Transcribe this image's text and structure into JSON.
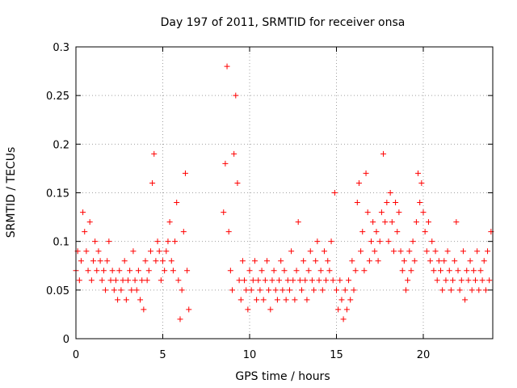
{
  "chart_data": {
    "type": "scatter",
    "title": "Day 197 of 2011, SRMTID for receiver onsa",
    "xlabel": "GPS time / hours",
    "ylabel": "SRMTID / TECUs",
    "xlim": [
      0,
      24
    ],
    "ylim": [
      0,
      0.3
    ],
    "xticks": [
      "0",
      "5",
      "10",
      "15",
      "20"
    ],
    "yticks": [
      "0",
      "0.05",
      "0.1",
      "0.15",
      "0.2",
      "0.25",
      "0.3"
    ],
    "grid": true,
    "marker": "plus",
    "color": "#ff0000",
    "series": [
      {
        "name": "onsa",
        "points": [
          [
            0.0,
            0.07
          ],
          [
            0.1,
            0.09
          ],
          [
            0.2,
            0.06
          ],
          [
            0.3,
            0.08
          ],
          [
            0.4,
            0.13
          ],
          [
            0.5,
            0.11
          ],
          [
            0.6,
            0.09
          ],
          [
            0.7,
            0.07
          ],
          [
            0.8,
            0.12
          ],
          [
            0.9,
            0.06
          ],
          [
            1.0,
            0.08
          ],
          [
            1.1,
            0.1
          ],
          [
            1.2,
            0.07
          ],
          [
            1.3,
            0.09
          ],
          [
            1.4,
            0.08
          ],
          [
            1.5,
            0.06
          ],
          [
            1.6,
            0.07
          ],
          [
            1.7,
            0.05
          ],
          [
            1.8,
            0.08
          ],
          [
            1.9,
            0.1
          ],
          [
            2.0,
            0.06
          ],
          [
            2.1,
            0.07
          ],
          [
            2.2,
            0.05
          ],
          [
            2.3,
            0.06
          ],
          [
            2.4,
            0.04
          ],
          [
            2.5,
            0.07
          ],
          [
            2.6,
            0.05
          ],
          [
            2.7,
            0.06
          ],
          [
            2.8,
            0.08
          ],
          [
            2.9,
            0.04
          ],
          [
            3.0,
            0.06
          ],
          [
            3.1,
            0.07
          ],
          [
            3.2,
            0.05
          ],
          [
            3.3,
            0.09
          ],
          [
            3.4,
            0.06
          ],
          [
            3.5,
            0.05
          ],
          [
            3.6,
            0.07
          ],
          [
            3.7,
            0.04
          ],
          [
            3.8,
            0.06
          ],
          [
            3.9,
            0.03
          ],
          [
            4.0,
            0.08
          ],
          [
            4.1,
            0.06
          ],
          [
            4.2,
            0.07
          ],
          [
            4.3,
            0.09
          ],
          [
            4.4,
            0.16
          ],
          [
            4.5,
            0.19
          ],
          [
            4.6,
            0.08
          ],
          [
            4.7,
            0.1
          ],
          [
            4.8,
            0.09
          ],
          [
            4.9,
            0.06
          ],
          [
            5.0,
            0.08
          ],
          [
            5.1,
            0.07
          ],
          [
            5.2,
            0.09
          ],
          [
            5.3,
            0.1
          ],
          [
            5.4,
            0.12
          ],
          [
            5.5,
            0.08
          ],
          [
            5.6,
            0.07
          ],
          [
            5.7,
            0.1
          ],
          [
            5.8,
            0.14
          ],
          [
            5.9,
            0.06
          ],
          [
            6.0,
            0.02
          ],
          [
            6.1,
            0.05
          ],
          [
            6.2,
            0.11
          ],
          [
            6.3,
            0.17
          ],
          [
            6.4,
            0.07
          ],
          [
            6.5,
            0.03
          ],
          [
            8.5,
            0.13
          ],
          [
            8.6,
            0.18
          ],
          [
            8.7,
            0.28
          ],
          [
            8.8,
            0.11
          ],
          [
            8.9,
            0.07
          ],
          [
            9.0,
            0.05
          ],
          [
            9.1,
            0.19
          ],
          [
            9.2,
            0.25
          ],
          [
            9.3,
            0.16
          ],
          [
            9.4,
            0.06
          ],
          [
            9.5,
            0.04
          ],
          [
            9.6,
            0.08
          ],
          [
            9.7,
            0.06
          ],
          [
            9.8,
            0.05
          ],
          [
            9.9,
            0.03
          ],
          [
            10.0,
            0.07
          ],
          [
            10.1,
            0.05
          ],
          [
            10.2,
            0.06
          ],
          [
            10.3,
            0.08
          ],
          [
            10.4,
            0.04
          ],
          [
            10.5,
            0.06
          ],
          [
            10.6,
            0.05
          ],
          [
            10.7,
            0.07
          ],
          [
            10.8,
            0.04
          ],
          [
            10.9,
            0.06
          ],
          [
            11.0,
            0.08
          ],
          [
            11.1,
            0.05
          ],
          [
            11.2,
            0.03
          ],
          [
            11.3,
            0.06
          ],
          [
            11.4,
            0.07
          ],
          [
            11.5,
            0.05
          ],
          [
            11.6,
            0.04
          ],
          [
            11.7,
            0.06
          ],
          [
            11.8,
            0.08
          ],
          [
            11.9,
            0.05
          ],
          [
            12.0,
            0.07
          ],
          [
            12.1,
            0.04
          ],
          [
            12.2,
            0.06
          ],
          [
            12.3,
            0.05
          ],
          [
            12.4,
            0.09
          ],
          [
            12.5,
            0.06
          ],
          [
            12.6,
            0.04
          ],
          [
            12.7,
            0.07
          ],
          [
            12.8,
            0.12
          ],
          [
            12.9,
            0.06
          ],
          [
            13.0,
            0.05
          ],
          [
            13.1,
            0.08
          ],
          [
            13.2,
            0.06
          ],
          [
            13.3,
            0.04
          ],
          [
            13.4,
            0.07
          ],
          [
            13.5,
            0.09
          ],
          [
            13.6,
            0.06
          ],
          [
            13.7,
            0.05
          ],
          [
            13.8,
            0.08
          ],
          [
            13.9,
            0.1
          ],
          [
            14.0,
            0.06
          ],
          [
            14.1,
            0.07
          ],
          [
            14.2,
            0.05
          ],
          [
            14.3,
            0.09
          ],
          [
            14.4,
            0.06
          ],
          [
            14.5,
            0.08
          ],
          [
            14.6,
            0.07
          ],
          [
            14.7,
            0.1
          ],
          [
            14.8,
            0.06
          ],
          [
            14.9,
            0.15
          ],
          [
            15.0,
            0.05
          ],
          [
            15.1,
            0.03
          ],
          [
            15.2,
            0.06
          ],
          [
            15.3,
            0.04
          ],
          [
            15.4,
            0.02
          ],
          [
            15.5,
            0.05
          ],
          [
            15.6,
            0.03
          ],
          [
            15.7,
            0.06
          ],
          [
            15.8,
            0.04
          ],
          [
            15.9,
            0.08
          ],
          [
            16.0,
            0.05
          ],
          [
            16.1,
            0.07
          ],
          [
            16.2,
            0.14
          ],
          [
            16.3,
            0.16
          ],
          [
            16.4,
            0.09
          ],
          [
            16.5,
            0.11
          ],
          [
            16.6,
            0.07
          ],
          [
            16.7,
            0.17
          ],
          [
            16.8,
            0.13
          ],
          [
            16.9,
            0.08
          ],
          [
            17.0,
            0.1
          ],
          [
            17.1,
            0.12
          ],
          [
            17.2,
            0.09
          ],
          [
            17.3,
            0.11
          ],
          [
            17.4,
            0.08
          ],
          [
            17.5,
            0.1
          ],
          [
            17.6,
            0.13
          ],
          [
            17.7,
            0.19
          ],
          [
            17.8,
            0.12
          ],
          [
            17.9,
            0.14
          ],
          [
            18.0,
            0.1
          ],
          [
            18.1,
            0.15
          ],
          [
            18.2,
            0.12
          ],
          [
            18.3,
            0.09
          ],
          [
            18.4,
            0.14
          ],
          [
            18.5,
            0.11
          ],
          [
            18.6,
            0.13
          ],
          [
            18.7,
            0.09
          ],
          [
            18.8,
            0.07
          ],
          [
            18.9,
            0.08
          ],
          [
            19.0,
            0.05
          ],
          [
            19.1,
            0.06
          ],
          [
            19.2,
            0.09
          ],
          [
            19.3,
            0.07
          ],
          [
            19.4,
            0.1
          ],
          [
            19.5,
            0.08
          ],
          [
            19.6,
            0.12
          ],
          [
            19.7,
            0.17
          ],
          [
            19.8,
            0.14
          ],
          [
            19.9,
            0.16
          ],
          [
            20.0,
            0.13
          ],
          [
            20.1,
            0.11
          ],
          [
            20.2,
            0.09
          ],
          [
            20.3,
            0.12
          ],
          [
            20.4,
            0.08
          ],
          [
            20.5,
            0.1
          ],
          [
            20.6,
            0.07
          ],
          [
            20.7,
            0.09
          ],
          [
            20.8,
            0.06
          ],
          [
            20.9,
            0.08
          ],
          [
            21.0,
            0.07
          ],
          [
            21.1,
            0.05
          ],
          [
            21.2,
            0.08
          ],
          [
            21.3,
            0.06
          ],
          [
            21.4,
            0.09
          ],
          [
            21.5,
            0.07
          ],
          [
            21.6,
            0.05
          ],
          [
            21.7,
            0.06
          ],
          [
            21.8,
            0.08
          ],
          [
            21.9,
            0.12
          ],
          [
            22.0,
            0.07
          ],
          [
            22.1,
            0.05
          ],
          [
            22.2,
            0.06
          ],
          [
            22.3,
            0.09
          ],
          [
            22.4,
            0.04
          ],
          [
            22.5,
            0.07
          ],
          [
            22.6,
            0.06
          ],
          [
            22.7,
            0.08
          ],
          [
            22.8,
            0.05
          ],
          [
            22.9,
            0.07
          ],
          [
            23.0,
            0.06
          ],
          [
            23.1,
            0.09
          ],
          [
            23.2,
            0.05
          ],
          [
            23.3,
            0.07
          ],
          [
            23.4,
            0.06
          ],
          [
            23.5,
            0.08
          ],
          [
            23.6,
            0.05
          ],
          [
            23.7,
            0.09
          ],
          [
            23.8,
            0.06
          ],
          [
            23.9,
            0.11
          ]
        ]
      }
    ]
  }
}
